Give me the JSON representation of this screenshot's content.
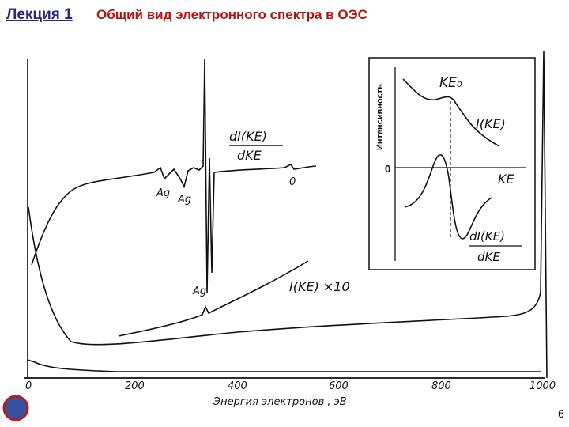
{
  "header": {
    "lecture": "Лекция 1",
    "title": "Общий вид электронного спектра в ОЭС"
  },
  "figure": {
    "x_tick_labels": [
      "0",
      "200",
      "400",
      "600",
      "800",
      "1000"
    ],
    "x_label": "Энергия   электронов , эВ",
    "derivative_label_top": "dI(KE)",
    "derivative_label_bottom": "dKE",
    "peak_labels": [
      "Ag",
      "Ag",
      "Ag"
    ],
    "zero_label": "0",
    "intensity_label": "I(KE) ×10",
    "inset": {
      "y_label": "Интенсивность",
      "ke0": "KE₀",
      "curve_label": "I(KE)",
      "zero": "0",
      "x_label": "KE",
      "derivative_top": "dI(KE)",
      "derivative_bottom": "dKE"
    }
  },
  "page_number": "6"
}
